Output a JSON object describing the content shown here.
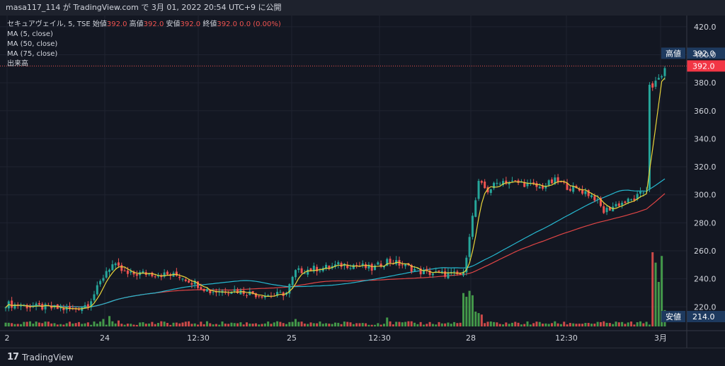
{
  "header": {
    "title": "masa117_114 が TradingView.com で 3月 01, 2022 20:54 UTC+9 に公開"
  },
  "legend": {
    "symbol": "セキュアヴェイル, 5, TSE",
    "open_label": "始値",
    "open": "392.0",
    "high_label": "高値",
    "high": "392.0",
    "low_label": "安値",
    "low": "392.0",
    "close_label": "終値",
    "close": "392.0",
    "change": "0.0 (0.00%)",
    "ma1": "MA (5, close)",
    "ma2": "MA (50, close)",
    "ma3": "MA (75, close)",
    "volume": "出来高"
  },
  "footer": {
    "brand": "TradingView"
  },
  "colors": {
    "up": "#26a69a",
    "down": "#ef5350",
    "ma5": "#e8d43a",
    "ma50": "#26b8d0",
    "ma75": "#e04545",
    "vol_up": "#4caf50",
    "vol_down": "#ef5350",
    "high_badge": "#1e3a5f",
    "last_badge": "#f23645"
  },
  "chart_data": {
    "type": "line",
    "title": "",
    "price_axis": {
      "ylim": [
        206,
        428
      ],
      "ticks": [
        "420.0",
        "400.0",
        "380.0",
        "360.0",
        "340.0",
        "320.0",
        "300.0",
        "280.0",
        "260.0",
        "240.0",
        "220.0"
      ]
    },
    "x_axis": {
      "labels": [
        "2",
        "24",
        "12:30",
        "25",
        "12:30",
        "28",
        "12:30",
        "3月"
      ],
      "sessions": [
        {
          "label": "24",
          "bars": 50
        },
        {
          "label": "25",
          "bars": 50
        },
        {
          "label": "28",
          "bars": 50
        },
        {
          "label": "3月",
          "bars": 6
        }
      ]
    },
    "markers": {
      "high_label": "高値",
      "high_value": "392.0",
      "last_value": "392.0",
      "low_label": "安値",
      "low_value": "214.0"
    },
    "anchors": [
      {
        "i": 0,
        "p": 222
      },
      {
        "i": 10,
        "p": 220
      },
      {
        "i": 22,
        "p": 218
      },
      {
        "i": 27,
        "p": 222
      },
      {
        "i": 30,
        "p": 233
      },
      {
        "i": 33,
        "p": 246
      },
      {
        "i": 35,
        "p": 250
      },
      {
        "i": 40,
        "p": 243
      },
      {
        "i": 45,
        "p": 244
      },
      {
        "i": 52,
        "p": 243
      },
      {
        "i": 57,
        "p": 242
      },
      {
        "i": 62,
        "p": 237
      },
      {
        "i": 67,
        "p": 231
      },
      {
        "i": 75,
        "p": 232
      },
      {
        "i": 82,
        "p": 229
      },
      {
        "i": 88,
        "p": 228
      },
      {
        "i": 92,
        "p": 230
      },
      {
        "i": 95,
        "p": 245
      },
      {
        "i": 100,
        "p": 247
      },
      {
        "i": 105,
        "p": 248
      },
      {
        "i": 110,
        "p": 250
      },
      {
        "i": 115,
        "p": 250
      },
      {
        "i": 120,
        "p": 247
      },
      {
        "i": 125,
        "p": 253
      },
      {
        "i": 130,
        "p": 250
      },
      {
        "i": 136,
        "p": 245
      },
      {
        "i": 140,
        "p": 244
      },
      {
        "i": 148,
        "p": 243
      },
      {
        "i": 150,
        "p": 243
      },
      {
        "i": 152,
        "p": 272
      },
      {
        "i": 155,
        "p": 308
      },
      {
        "i": 158,
        "p": 303
      },
      {
        "i": 162,
        "p": 310
      },
      {
        "i": 170,
        "p": 308
      },
      {
        "i": 175,
        "p": 305
      },
      {
        "i": 180,
        "p": 310
      },
      {
        "i": 185,
        "p": 305
      },
      {
        "i": 190,
        "p": 302
      },
      {
        "i": 193,
        "p": 298
      },
      {
        "i": 196,
        "p": 288
      },
      {
        "i": 200,
        "p": 293
      },
      {
        "i": 205,
        "p": 296
      },
      {
        "i": 208,
        "p": 300
      },
      {
        "i": 210,
        "p": 304
      },
      {
        "i": 212,
        "p": 375
      },
      {
        "i": 213,
        "p": 380
      },
      {
        "i": 215,
        "p": 386
      }
    ],
    "ma_series": [
      {
        "name": "MA (5, close)",
        "period": 5
      },
      {
        "name": "MA (50, close)",
        "period": 50
      },
      {
        "name": "MA (75, close)",
        "period": 75
      }
    ],
    "volume_spikes": [
      {
        "i": 32,
        "v": 10
      },
      {
        "i": 34,
        "v": 14
      },
      {
        "i": 37,
        "v": 8
      },
      {
        "i": 95,
        "v": 10
      },
      {
        "i": 125,
        "v": 12
      },
      {
        "i": 150,
        "v": 45
      },
      {
        "i": 151,
        "v": 40
      },
      {
        "i": 152,
        "v": 48
      },
      {
        "i": 153,
        "v": 42
      },
      {
        "i": 154,
        "v": 20
      },
      {
        "i": 155,
        "v": 18
      },
      {
        "i": 156,
        "v": 16
      },
      {
        "i": 212,
        "v": 100
      },
      {
        "i": 213,
        "v": 86
      },
      {
        "i": 214,
        "v": 60
      },
      {
        "i": 215,
        "v": 95
      },
      {
        "i": 216,
        "v": 22
      }
    ]
  }
}
